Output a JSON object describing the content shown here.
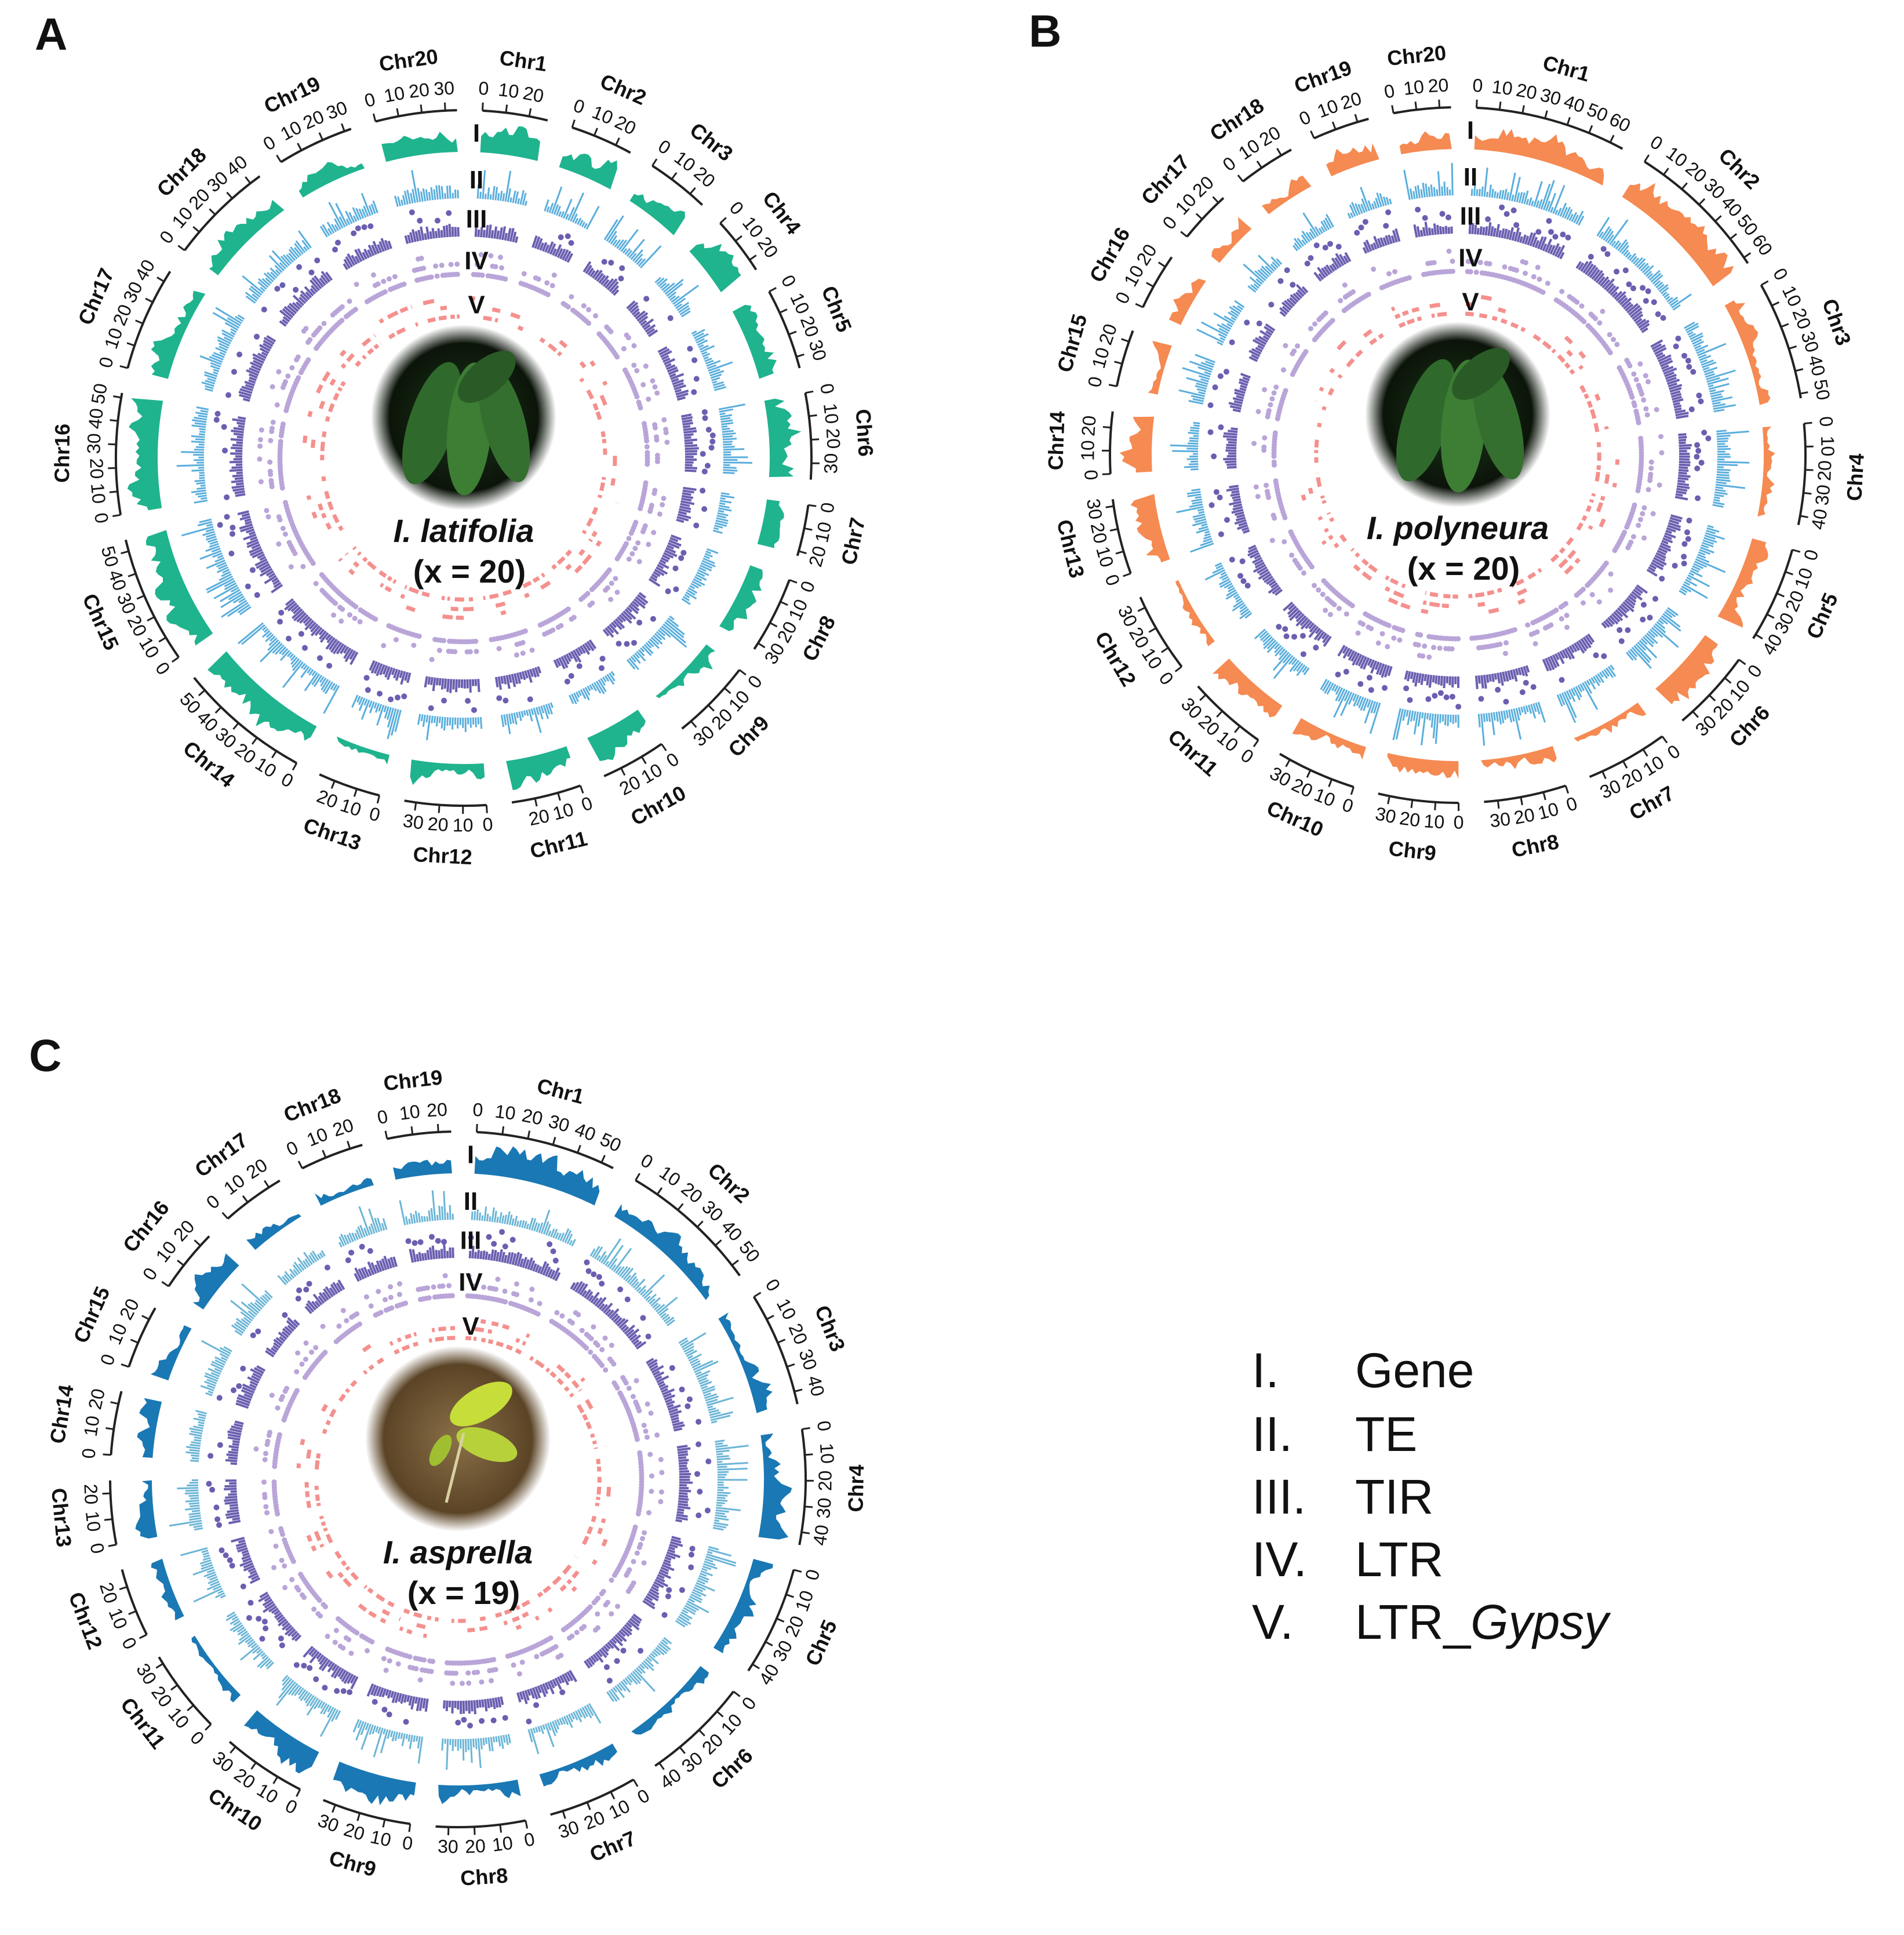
{
  "panels": [
    {
      "label": "A",
      "species": "I. latifolia",
      "count": "(x = 20)",
      "track_colors": [
        "#1fb38e",
        "#5aaedc",
        "#6a5fb0",
        "#b9a5d8",
        "#f4908d"
      ],
      "photo": "dark",
      "chromosomes": [
        {
          "name": "Chr1",
          "length": 28,
          "ticks": [
            0,
            10,
            20
          ]
        },
        {
          "name": "Chr2",
          "length": 27,
          "ticks": [
            0,
            10,
            20
          ]
        },
        {
          "name": "Chr3",
          "length": 27,
          "ticks": [
            0,
            10,
            20
          ]
        },
        {
          "name": "Chr4",
          "length": 25,
          "ticks": [
            0,
            10,
            20
          ]
        },
        {
          "name": "Chr5",
          "length": 35,
          "ticks": [
            0,
            10,
            20,
            30
          ]
        },
        {
          "name": "Chr6",
          "length": 37,
          "ticks": [
            0,
            10,
            20,
            30
          ]
        },
        {
          "name": "Chr7",
          "length": 22,
          "ticks": [
            0,
            10,
            20
          ]
        },
        {
          "name": "Chr8",
          "length": 33,
          "ticks": [
            0,
            10,
            20,
            30
          ]
        },
        {
          "name": "Chr9",
          "length": 35,
          "ticks": [
            0,
            10,
            20,
            30
          ]
        },
        {
          "name": "Chr10",
          "length": 28,
          "ticks": [
            0,
            10,
            20
          ]
        },
        {
          "name": "Chr11",
          "length": 30,
          "ticks": [
            0,
            10,
            20
          ]
        },
        {
          "name": "Chr12",
          "length": 35,
          "ticks": [
            0,
            10,
            20,
            30
          ]
        },
        {
          "name": "Chr13",
          "length": 27,
          "ticks": [
            0,
            10,
            20
          ]
        },
        {
          "name": "Chr14",
          "length": 57,
          "ticks": [
            0,
            10,
            20,
            30,
            40,
            50
          ]
        },
        {
          "name": "Chr15",
          "length": 55,
          "ticks": [
            0,
            10,
            20,
            30,
            40,
            50
          ]
        },
        {
          "name": "Chr16",
          "length": 52,
          "ticks": [
            0,
            10,
            20,
            30,
            40,
            50
          ]
        },
        {
          "name": "Chr17",
          "length": 45,
          "ticks": [
            0,
            10,
            20,
            30,
            40
          ]
        },
        {
          "name": "Chr18",
          "length": 45,
          "ticks": [
            0,
            10,
            20,
            30,
            40
          ]
        },
        {
          "name": "Chr19",
          "length": 33,
          "ticks": [
            0,
            10,
            20,
            30
          ]
        },
        {
          "name": "Chr20",
          "length": 35,
          "ticks": [
            0,
            10,
            20,
            30
          ]
        }
      ]
    },
    {
      "label": "B",
      "species": "I. polyneura",
      "count": "(x = 20)",
      "track_colors": [
        "#f58a52",
        "#5aaedc",
        "#6a5fb0",
        "#b9a5d8",
        "#f4908d"
      ],
      "photo": "dark",
      "chromosomes": [
        {
          "name": "Chr1",
          "length": 66,
          "ticks": [
            0,
            10,
            20,
            30,
            40,
            50,
            60
          ]
        },
        {
          "name": "Chr2",
          "length": 63,
          "ticks": [
            0,
            10,
            20,
            30,
            40,
            50,
            60
          ]
        },
        {
          "name": "Chr3",
          "length": 52,
          "ticks": [
            0,
            10,
            20,
            30,
            40,
            50
          ]
        },
        {
          "name": "Chr4",
          "length": 44,
          "ticks": [
            0,
            10,
            20,
            30,
            40
          ]
        },
        {
          "name": "Chr5",
          "length": 42,
          "ticks": [
            0,
            10,
            20,
            30,
            40
          ]
        },
        {
          "name": "Chr6",
          "length": 36,
          "ticks": [
            0,
            10,
            20,
            30
          ]
        },
        {
          "name": "Chr7",
          "length": 36,
          "ticks": [
            0,
            10,
            20,
            30
          ]
        },
        {
          "name": "Chr8",
          "length": 36,
          "ticks": [
            0,
            10,
            20,
            30
          ]
        },
        {
          "name": "Chr9",
          "length": 35,
          "ticks": [
            0,
            10,
            20,
            30
          ]
        },
        {
          "name": "Chr10",
          "length": 35,
          "ticks": [
            0,
            10,
            20,
            30
          ]
        },
        {
          "name": "Chr11",
          "length": 35,
          "ticks": [
            0,
            10,
            20,
            30
          ]
        },
        {
          "name": "Chr12",
          "length": 35,
          "ticks": [
            0,
            10,
            20,
            30
          ]
        },
        {
          "name": "Chr13",
          "length": 33,
          "ticks": [
            0,
            10,
            20,
            30
          ]
        },
        {
          "name": "Chr14",
          "length": 27,
          "ticks": [
            0,
            10,
            20
          ]
        },
        {
          "name": "Chr15",
          "length": 25,
          "ticks": [
            0,
            10,
            20
          ]
        },
        {
          "name": "Chr16",
          "length": 25,
          "ticks": [
            0,
            10,
            20
          ]
        },
        {
          "name": "Chr17",
          "length": 23,
          "ticks": [
            0,
            10,
            20
          ]
        },
        {
          "name": "Chr18",
          "length": 25,
          "ticks": [
            0,
            10,
            20
          ]
        },
        {
          "name": "Chr19",
          "length": 25,
          "ticks": [
            0,
            10,
            20
          ]
        },
        {
          "name": "Chr20",
          "length": 25,
          "ticks": [
            0,
            10,
            20
          ]
        }
      ]
    },
    {
      "label": "C",
      "species": "I. asprella",
      "count": "(x = 19)",
      "track_colors": [
        "#1a78b4",
        "#6bb5d6",
        "#6a5fb0",
        "#b9a5d8",
        "#f4908d"
      ],
      "photo": "brown",
      "chromosomes": [
        {
          "name": "Chr1",
          "length": 55,
          "ticks": [
            0,
            10,
            20,
            30,
            40,
            50
          ]
        },
        {
          "name": "Chr2",
          "length": 55,
          "ticks": [
            0,
            10,
            20,
            30,
            40,
            50
          ]
        },
        {
          "name": "Chr3",
          "length": 45,
          "ticks": [
            0,
            10,
            20,
            30,
            40
          ]
        },
        {
          "name": "Chr4",
          "length": 45,
          "ticks": [
            0,
            10,
            20,
            30,
            40
          ]
        },
        {
          "name": "Chr5",
          "length": 43,
          "ticks": [
            0,
            10,
            20,
            30,
            40
          ]
        },
        {
          "name": "Chr6",
          "length": 42,
          "ticks": [
            0,
            10,
            20,
            30,
            40
          ]
        },
        {
          "name": "Chr7",
          "length": 35,
          "ticks": [
            0,
            10,
            20,
            30
          ]
        },
        {
          "name": "Chr8",
          "length": 35,
          "ticks": [
            0,
            10,
            20,
            30
          ]
        },
        {
          "name": "Chr9",
          "length": 35,
          "ticks": [
            0,
            10,
            20,
            30
          ]
        },
        {
          "name": "Chr10",
          "length": 33,
          "ticks": [
            0,
            10,
            20,
            30
          ]
        },
        {
          "name": "Chr11",
          "length": 33,
          "ticks": [
            0,
            10,
            20,
            30
          ]
        },
        {
          "name": "Chr12",
          "length": 27,
          "ticks": [
            0,
            10,
            20
          ]
        },
        {
          "name": "Chr13",
          "length": 25,
          "ticks": [
            0,
            10,
            20
          ]
        },
        {
          "name": "Chr14",
          "length": 25,
          "ticks": [
            0,
            10,
            20
          ]
        },
        {
          "name": "Chr15",
          "length": 25,
          "ticks": [
            0,
            10,
            20
          ]
        },
        {
          "name": "Chr16",
          "length": 25,
          "ticks": [
            0,
            10,
            20
          ]
        },
        {
          "name": "Chr17",
          "length": 25,
          "ticks": [
            0,
            10,
            20
          ]
        },
        {
          "name": "Chr18",
          "length": 25,
          "ticks": [
            0,
            10,
            20
          ]
        },
        {
          "name": "Chr19",
          "length": 25,
          "ticks": [
            0,
            10,
            20
          ]
        }
      ]
    }
  ],
  "tracks": [
    "I",
    "II",
    "III",
    "IV",
    "V"
  ],
  "legend": [
    {
      "numeral": "I.",
      "name": "Gene"
    },
    {
      "numeral": "II.",
      "name": "TE"
    },
    {
      "numeral": "III.",
      "name": "TIR"
    },
    {
      "numeral": "IV.",
      "name": "LTR"
    },
    {
      "numeral": "V.",
      "name": "LTR_",
      "italic": "Gypsy"
    }
  ]
}
